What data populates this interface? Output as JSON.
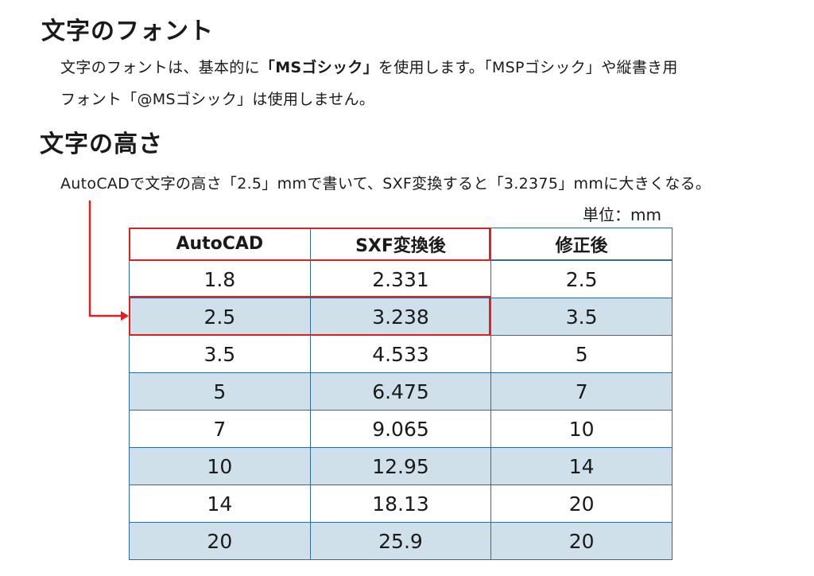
{
  "section_font": {
    "heading": "文字のフォント",
    "line1_pre": "文字のフォントは、基本的に",
    "line1_bold": "「MSゴシック」",
    "line1_post": "を使用します。「MSPゴシック」や縦書き用",
    "line2": "フォント「@MSゴシック」は使用しません。"
  },
  "section_height": {
    "heading": "文字の高さ",
    "text": "AutoCADで文字の高さ「2.5」mmで書いて、SXF変換すると「3.2375」mmに大きくなる。"
  },
  "unit_label": "単位：mm",
  "table": {
    "headers": [
      "AutoCAD",
      "SXF変換後",
      "修正後"
    ],
    "rows": [
      [
        "1.8",
        "2.331",
        "2.5"
      ],
      [
        "2.5",
        "3.238",
        "3.5"
      ],
      [
        "3.5",
        "4.533",
        "5"
      ],
      [
        "5",
        "6.475",
        "7"
      ],
      [
        "7",
        "9.065",
        "10"
      ],
      [
        "10",
        "12.95",
        "14"
      ],
      [
        "14",
        "18.13",
        "20"
      ],
      [
        "20",
        "25.9",
        "20"
      ]
    ]
  },
  "colors": {
    "accent_red": "#e02020",
    "table_border": "#2f6b9c",
    "row_shade": "#d0e0ea"
  }
}
